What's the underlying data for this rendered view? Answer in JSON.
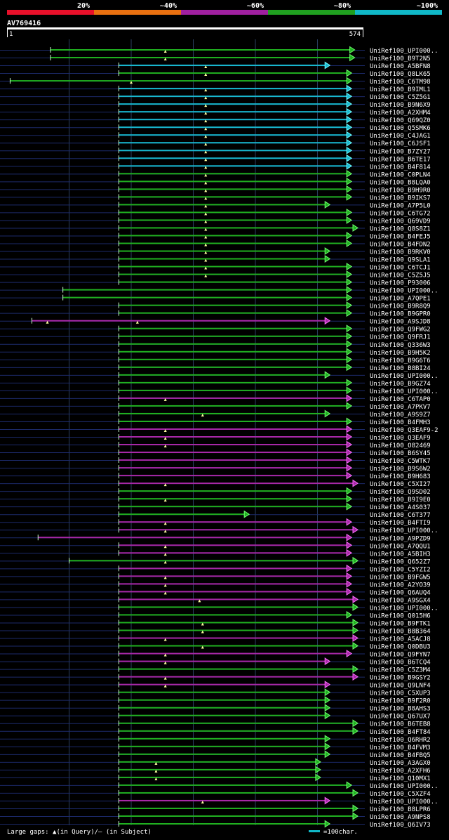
{
  "legend": {
    "labels": [
      "20%",
      "~40%",
      "~60%",
      "~80%",
      "~100%"
    ],
    "colors": [
      "#e8102a",
      "#e87010",
      "#a020a0",
      "#20a020",
      "#10b8c8"
    ]
  },
  "query": {
    "id": "AV769416",
    "start": "1",
    "end": "574",
    "length": 574
  },
  "footer": {
    "gaps_label": "Large gaps: ▲(in Query)/— (in Subject)",
    "scale_label": "=100char."
  },
  "hits": [
    {
      "name": "UniRef100_UPI000..",
      "s": 70,
      "e": 560,
      "c": "g",
      "m": [
        255
      ]
    },
    {
      "name": "UniRef100_B9T2N5",
      "s": 70,
      "e": 560,
      "c": "g",
      "m": [
        255
      ]
    },
    {
      "name": "UniRef100_A5BFN8",
      "s": 180,
      "e": 520,
      "c": "c",
      "m": [
        320
      ]
    },
    {
      "name": "UniRef100_Q8LK65",
      "s": 180,
      "e": 555,
      "c": "g",
      "m": [
        320
      ]
    },
    {
      "name": "UniRef100_C6TM98",
      "s": 5,
      "e": 555,
      "c": "g",
      "m": [
        200
      ]
    },
    {
      "name": "UniRef100_B9IML1",
      "s": 180,
      "e": 555,
      "c": "c",
      "m": [
        320
      ]
    },
    {
      "name": "UniRef100_C5Z5G1",
      "s": 180,
      "e": 555,
      "c": "c",
      "m": [
        320
      ]
    },
    {
      "name": "UniRef100_B9N6X9",
      "s": 180,
      "e": 555,
      "c": "c",
      "m": [
        320
      ]
    },
    {
      "name": "UniRef100_A2XHM4",
      "s": 180,
      "e": 555,
      "c": "c",
      "m": [
        320
      ]
    },
    {
      "name": "UniRef100_Q69QZ0",
      "s": 180,
      "e": 555,
      "c": "c",
      "m": [
        320
      ]
    },
    {
      "name": "UniRef100_Q5SMK6",
      "s": 180,
      "e": 555,
      "c": "c",
      "m": [
        320
      ]
    },
    {
      "name": "UniRef100_C4JAG1",
      "s": 180,
      "e": 555,
      "c": "c",
      "m": [
        320
      ]
    },
    {
      "name": "UniRef100_C6JSF1",
      "s": 180,
      "e": 555,
      "c": "c",
      "m": [
        320
      ]
    },
    {
      "name": "UniRef100_B7ZY27",
      "s": 180,
      "e": 555,
      "c": "c",
      "m": [
        320
      ]
    },
    {
      "name": "UniRef100_B6TE17",
      "s": 180,
      "e": 555,
      "c": "c",
      "m": [
        320
      ]
    },
    {
      "name": "UniRef100_B4F814",
      "s": 180,
      "e": 555,
      "c": "c",
      "m": [
        320
      ]
    },
    {
      "name": "UniRef100_C0PLN4",
      "s": 180,
      "e": 555,
      "c": "g",
      "m": [
        320
      ]
    },
    {
      "name": "UniRef100_B8LQA0",
      "s": 180,
      "e": 555,
      "c": "g",
      "m": [
        320
      ]
    },
    {
      "name": "UniRef100_B9H9R0",
      "s": 180,
      "e": 555,
      "c": "g",
      "m": [
        320
      ]
    },
    {
      "name": "UniRef100_B9IKS7",
      "s": 180,
      "e": 555,
      "c": "g",
      "m": [
        320
      ]
    },
    {
      "name": "UniRef100_A7P5L0",
      "s": 180,
      "e": 520,
      "c": "g",
      "m": [
        320
      ]
    },
    {
      "name": "UniRef100_C6TG72",
      "s": 180,
      "e": 555,
      "c": "g",
      "m": [
        320
      ]
    },
    {
      "name": "UniRef100_Q69VD9",
      "s": 180,
      "e": 555,
      "c": "g",
      "m": [
        320
      ]
    },
    {
      "name": "UniRef100_Q8S8Z1",
      "s": 180,
      "e": 565,
      "c": "g",
      "m": [
        320
      ]
    },
    {
      "name": "UniRef100_B4FEJ5",
      "s": 180,
      "e": 555,
      "c": "g",
      "m": [
        320
      ]
    },
    {
      "name": "UniRef100_B4FDN2",
      "s": 180,
      "e": 555,
      "c": "g",
      "m": [
        320
      ]
    },
    {
      "name": "UniRef100_B9RKV0",
      "s": 180,
      "e": 520,
      "c": "g",
      "m": [
        320
      ]
    },
    {
      "name": "UniRef100_Q9SLA1",
      "s": 180,
      "e": 520,
      "c": "g",
      "m": [
        320
      ]
    },
    {
      "name": "UniRef100_C6TCJ1",
      "s": 180,
      "e": 555,
      "c": "g",
      "m": [
        320
      ]
    },
    {
      "name": "UniRef100_C5Z5J5",
      "s": 180,
      "e": 555,
      "c": "g",
      "m": [
        320
      ]
    },
    {
      "name": "UniRef100_P93006",
      "s": 180,
      "e": 555,
      "c": "g",
      "m": []
    },
    {
      "name": "UniRef100_UPI000..",
      "s": 90,
      "e": 555,
      "c": "g",
      "m": []
    },
    {
      "name": "UniRef100_A7QPE1",
      "s": 90,
      "e": 555,
      "c": "g",
      "m": []
    },
    {
      "name": "UniRef100_B9R8Q9",
      "s": 180,
      "e": 555,
      "c": "g",
      "m": []
    },
    {
      "name": "UniRef100_B9GPR0",
      "s": 180,
      "e": 555,
      "c": "g",
      "m": []
    },
    {
      "name": "UniRef100_A9SJD8",
      "s": 40,
      "e": 520,
      "c": "p",
      "m": [
        65,
        210
      ]
    },
    {
      "name": "UniRef100_Q9FWG2",
      "s": 180,
      "e": 555,
      "c": "g",
      "m": []
    },
    {
      "name": "UniRef100_Q9FRJ1",
      "s": 180,
      "e": 555,
      "c": "g",
      "m": []
    },
    {
      "name": "UniRef100_Q336W3",
      "s": 180,
      "e": 555,
      "c": "g",
      "m": []
    },
    {
      "name": "UniRef100_B9H5K2",
      "s": 180,
      "e": 555,
      "c": "g",
      "m": []
    },
    {
      "name": "UniRef100_B9G6T6",
      "s": 180,
      "e": 555,
      "c": "g",
      "m": []
    },
    {
      "name": "UniRef100_B8BI24",
      "s": 180,
      "e": 555,
      "c": "g",
      "m": []
    },
    {
      "name": "UniRef100_UPI000..",
      "s": 180,
      "e": 520,
      "c": "g",
      "m": []
    },
    {
      "name": "UniRef100_B9GZ74",
      "s": 180,
      "e": 555,
      "c": "g",
      "m": []
    },
    {
      "name": "UniRef100_UPI000..",
      "s": 180,
      "e": 555,
      "c": "g",
      "m": []
    },
    {
      "name": "UniRef100_C6TAP0",
      "s": 180,
      "e": 555,
      "c": "p",
      "m": [
        255
      ]
    },
    {
      "name": "UniRef100_A7PKV7",
      "s": 180,
      "e": 555,
      "c": "g",
      "m": []
    },
    {
      "name": "UniRef100_A9S9Z7",
      "s": 180,
      "e": 520,
      "c": "g",
      "m": [
        315
      ]
    },
    {
      "name": "UniRef100_B4FMH3",
      "s": 180,
      "e": 555,
      "c": "g",
      "m": []
    },
    {
      "name": "UniRef100_Q3EAF9-2",
      "s": 180,
      "e": 555,
      "c": "p",
      "m": [
        255
      ]
    },
    {
      "name": "UniRef100_Q3EAF9",
      "s": 180,
      "e": 555,
      "c": "p",
      "m": [
        255
      ]
    },
    {
      "name": "UniRef100_O82469",
      "s": 180,
      "e": 555,
      "c": "p",
      "m": [
        255
      ]
    },
    {
      "name": "UniRef100_B6SY45",
      "s": 180,
      "e": 555,
      "c": "p",
      "m": []
    },
    {
      "name": "UniRef100_C5WTK7",
      "s": 180,
      "e": 555,
      "c": "p",
      "m": []
    },
    {
      "name": "UniRef100_B9S6W2",
      "s": 180,
      "e": 555,
      "c": "p",
      "m": []
    },
    {
      "name": "UniRef100_B9H683",
      "s": 180,
      "e": 555,
      "c": "p",
      "m": []
    },
    {
      "name": "UniRef100_C5XI27",
      "s": 180,
      "e": 565,
      "c": "p",
      "m": [
        255
      ]
    },
    {
      "name": "UniRef100_Q9SD02",
      "s": 180,
      "e": 555,
      "c": "g",
      "m": []
    },
    {
      "name": "UniRef100_B9I9E0",
      "s": 180,
      "e": 555,
      "c": "g",
      "m": [
        255
      ]
    },
    {
      "name": "UniRef100_A4S037",
      "s": 180,
      "e": 555,
      "c": "g",
      "m": []
    },
    {
      "name": "UniRef100_C6T377",
      "s": 180,
      "e": 390,
      "c": "g",
      "m": []
    },
    {
      "name": "UniRef100_B4FTI9",
      "s": 180,
      "e": 555,
      "c": "p",
      "m": [
        255
      ]
    },
    {
      "name": "UniRef100_UPI000..",
      "s": 180,
      "e": 565,
      "c": "p",
      "m": [
        255
      ]
    },
    {
      "name": "UniRef100_A9PZD9",
      "s": 50,
      "e": 555,
      "c": "p",
      "m": []
    },
    {
      "name": "UniRef100_A7QQU1",
      "s": 180,
      "e": 555,
      "c": "p",
      "m": [
        255
      ]
    },
    {
      "name": "UniRef100_A5BIH3",
      "s": 180,
      "e": 555,
      "c": "p",
      "m": [
        255
      ]
    },
    {
      "name": "UniRef100_Q652Z7",
      "s": 100,
      "e": 565,
      "c": "g",
      "m": [
        255
      ]
    },
    {
      "name": "UniRef100_C5YZI2",
      "s": 180,
      "e": 555,
      "c": "p",
      "m": []
    },
    {
      "name": "UniRef100_B9FGW5",
      "s": 180,
      "e": 555,
      "c": "p",
      "m": [
        255
      ]
    },
    {
      "name": "UniRef100_A2YO39",
      "s": 180,
      "e": 555,
      "c": "p",
      "m": [
        255
      ]
    },
    {
      "name": "UniRef100_Q6AUQ4",
      "s": 180,
      "e": 555,
      "c": "p",
      "m": [
        255
      ]
    },
    {
      "name": "UniRef100_A9SGX4",
      "s": 180,
      "e": 565,
      "c": "p",
      "m": [
        310
      ]
    },
    {
      "name": "UniRef100_UPI000..",
      "s": 180,
      "e": 565,
      "c": "g",
      "m": []
    },
    {
      "name": "UniRef100_Q015H6",
      "s": 180,
      "e": 555,
      "c": "g",
      "m": []
    },
    {
      "name": "UniRef100_B9FTK1",
      "s": 180,
      "e": 565,
      "c": "g",
      "m": [
        315
      ]
    },
    {
      "name": "UniRef100_B8B364",
      "s": 180,
      "e": 565,
      "c": "g",
      "m": [
        315
      ]
    },
    {
      "name": "UniRef100_A5ACJ8",
      "s": 180,
      "e": 565,
      "c": "p",
      "m": [
        255
      ]
    },
    {
      "name": "UniRef100_Q0DBU3",
      "s": 180,
      "e": 565,
      "c": "g",
      "m": [
        315
      ]
    },
    {
      "name": "UniRef100_Q9FYN7",
      "s": 180,
      "e": 555,
      "c": "p",
      "m": [
        255
      ]
    },
    {
      "name": "UniRef100_B6TCQ4",
      "s": 180,
      "e": 520,
      "c": "p",
      "m": [
        255
      ]
    },
    {
      "name": "UniRef100_C5Z3M4",
      "s": 180,
      "e": 565,
      "c": "g",
      "m": []
    },
    {
      "name": "UniRef100_B9GSY2",
      "s": 180,
      "e": 565,
      "c": "p",
      "m": [
        255
      ]
    },
    {
      "name": "UniRef100_Q9LNF4",
      "s": 180,
      "e": 520,
      "c": "p",
      "m": [
        255
      ]
    },
    {
      "name": "UniRef100_C5XUP3",
      "s": 180,
      "e": 520,
      "c": "g",
      "m": []
    },
    {
      "name": "UniRef100_B9F2R0",
      "s": 180,
      "e": 520,
      "c": "g",
      "m": []
    },
    {
      "name": "UniRef100_B8AHS3",
      "s": 180,
      "e": 520,
      "c": "g",
      "m": []
    },
    {
      "name": "UniRef100_Q67UX7",
      "s": 180,
      "e": 520,
      "c": "g",
      "m": []
    },
    {
      "name": "UniRef100_B6TEB8",
      "s": 180,
      "e": 565,
      "c": "g",
      "m": []
    },
    {
      "name": "UniRef100_B4FT84",
      "s": 180,
      "e": 565,
      "c": "g",
      "m": []
    },
    {
      "name": "UniRef100_Q6RHR2",
      "s": 180,
      "e": 520,
      "c": "g",
      "m": []
    },
    {
      "name": "UniRef100_B4FVM3",
      "s": 180,
      "e": 520,
      "c": "g",
      "m": []
    },
    {
      "name": "UniRef100_B4FBQ5",
      "s": 180,
      "e": 520,
      "c": "g",
      "m": []
    },
    {
      "name": "UniRef100_A3AGX0",
      "s": 180,
      "e": 505,
      "c": "g",
      "m": [
        240
      ]
    },
    {
      "name": "UniRef100_A2XFH6",
      "s": 180,
      "e": 505,
      "c": "g",
      "m": [
        240
      ]
    },
    {
      "name": "UniRef100_Q10MX1",
      "s": 180,
      "e": 505,
      "c": "g",
      "m": [
        240
      ]
    },
    {
      "name": "UniRef100_UPI000..",
      "s": 180,
      "e": 555,
      "c": "g",
      "m": []
    },
    {
      "name": "UniRef100_C5XZF4",
      "s": 180,
      "e": 565,
      "c": "g",
      "m": []
    },
    {
      "name": "UniRef100_UPI000..",
      "s": 180,
      "e": 520,
      "c": "p",
      "m": [
        315
      ]
    },
    {
      "name": "UniRef100_B8LPR6",
      "s": 180,
      "e": 565,
      "c": "g",
      "m": []
    },
    {
      "name": "UniRef100_A9NPS8",
      "s": 180,
      "e": 565,
      "c": "g",
      "m": []
    },
    {
      "name": "UniRef100_Q6IV73",
      "s": 180,
      "e": 520,
      "c": "g",
      "m": []
    }
  ]
}
